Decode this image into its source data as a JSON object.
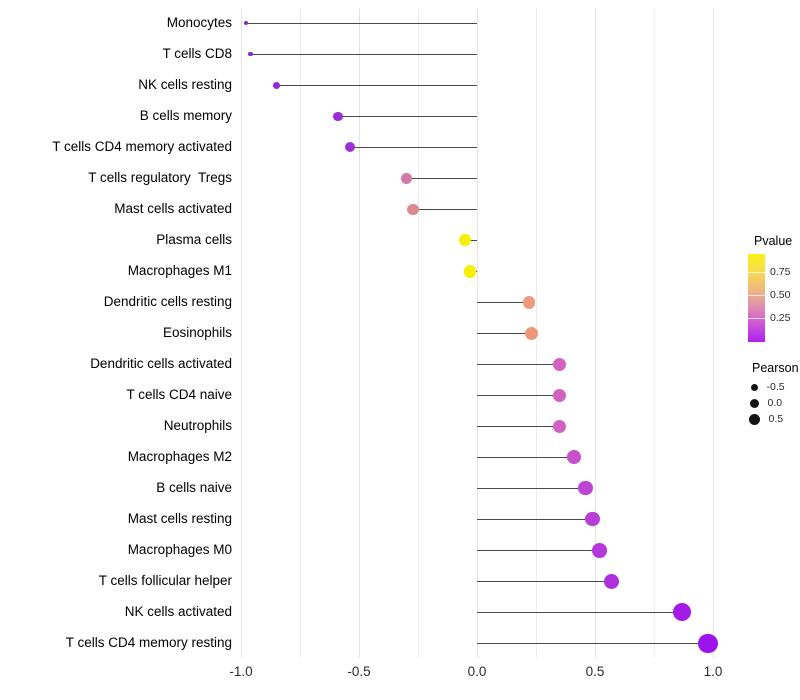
{
  "chart_data": {
    "type": "lollipop",
    "title": "",
    "xlabel": "",
    "ylabel": "",
    "background": "#FFFFFF",
    "stem_color": "#4A4A4A",
    "x_axis": {
      "tick_labels": [
        "-1.0",
        "-0.5",
        "0.0",
        "0.5",
        "1.0"
      ],
      "tick_values": [
        -1.0,
        -0.5,
        0.0,
        0.5,
        1.0
      ],
      "minor_step": 0.25,
      "range": [
        -1.1,
        1.1
      ],
      "grid": true
    },
    "points": [
      {
        "label": "Monocytes",
        "pearson": -0.98,
        "pvalue_est": 0.01,
        "color": "#8B27C6",
        "radius": 2.0
      },
      {
        "label": "T cells CD8",
        "pearson": -0.96,
        "pvalue_est": 0.01,
        "color": "#8B27C6",
        "radius": 2.2
      },
      {
        "label": "NK cells resting",
        "pearson": -0.85,
        "pvalue_est": 0.02,
        "color": "#9229D2",
        "radius": 3.4
      },
      {
        "label": "B cells memory",
        "pearson": -0.59,
        "pvalue_est": 0.03,
        "color": "#9A2CD7",
        "radius": 4.8
      },
      {
        "label": "T cells CD4 memory activated",
        "pearson": -0.54,
        "pvalue_est": 0.05,
        "color": "#9D31D9",
        "radius": 5.0
      },
      {
        "label": "T cells regulatory  Tregs",
        "pearson": -0.3,
        "pvalue_est": 0.35,
        "color": "#D279A6",
        "radius": 5.6
      },
      {
        "label": "Mast cells activated",
        "pearson": -0.27,
        "pvalue_est": 0.42,
        "color": "#DD8B90",
        "radius": 5.8
      },
      {
        "label": "Plasma cells",
        "pearson": -0.05,
        "pvalue_est": 0.88,
        "color": "#F8F001",
        "radius": 6.2
      },
      {
        "label": "Macrophages M1",
        "pearson": -0.03,
        "pvalue_est": 0.9,
        "color": "#F8F001",
        "radius": 6.3
      },
      {
        "label": "Dendritic cells resting",
        "pearson": 0.22,
        "pvalue_est": 0.55,
        "color": "#EC9B7B",
        "radius": 6.4
      },
      {
        "label": "Eosinophils",
        "pearson": 0.23,
        "pvalue_est": 0.53,
        "color": "#EB9778",
        "radius": 6.5
      },
      {
        "label": "Dendritic cells activated",
        "pearson": 0.35,
        "pvalue_est": 0.24,
        "color": "#D162C2",
        "radius": 6.6
      },
      {
        "label": "T cells CD4 naive",
        "pearson": 0.35,
        "pvalue_est": 0.24,
        "color": "#D162C2",
        "radius": 6.6
      },
      {
        "label": "Neutrophils",
        "pearson": 0.35,
        "pvalue_est": 0.24,
        "color": "#D162C2",
        "radius": 6.6
      },
      {
        "label": "Macrophages M2",
        "pearson": 0.41,
        "pvalue_est": 0.18,
        "color": "#C851CD",
        "radius": 6.9
      },
      {
        "label": "B cells naive",
        "pearson": 0.46,
        "pvalue_est": 0.14,
        "color": "#BE44D4",
        "radius": 7.1
      },
      {
        "label": "Mast cells resting",
        "pearson": 0.49,
        "pvalue_est": 0.11,
        "color": "#B93DD7",
        "radius": 7.2
      },
      {
        "label": "Macrophages M0",
        "pearson": 0.52,
        "pvalue_est": 0.09,
        "color": "#B538DA",
        "radius": 7.4
      },
      {
        "label": "T cells follicular helper",
        "pearson": 0.57,
        "pvalue_est": 0.07,
        "color": "#AF2EDE",
        "radius": 7.6
      },
      {
        "label": "NK cells activated",
        "pearson": 0.87,
        "pvalue_est": 0.02,
        "color": "#A21BE7",
        "radius": 9.0
      },
      {
        "label": "T cells CD4 memory resting",
        "pearson": 0.98,
        "pvalue_est": 0.01,
        "color": "#9D13EC",
        "radius": 9.8
      }
    ],
    "legends": {
      "pvalue": {
        "title": "Pvalue",
        "tick_labels": [
          "0.75",
          "0.50",
          "0.25"
        ],
        "gradient_top_color": "#FBF116",
        "gradient_bottom_color": "#AC22F0",
        "legend_position": "right"
      },
      "pearson": {
        "title": "Pearson",
        "items": [
          {
            "label": "-0.5",
            "diameter": 7
          },
          {
            "label": "0.0",
            "diameter": 9
          },
          {
            "label": "0.5",
            "diameter": 11
          }
        ],
        "legend_position": "right"
      }
    }
  }
}
